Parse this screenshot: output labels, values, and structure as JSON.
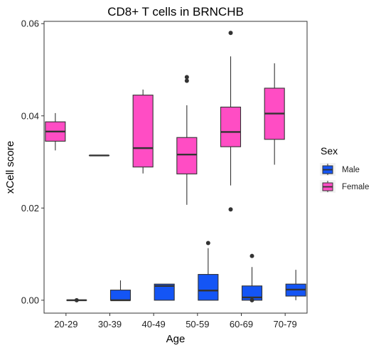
{
  "chart_data": {
    "type": "box",
    "title": "CD8+ T cells in BRNCHB",
    "xlabel": "Age",
    "ylabel": "xCell score",
    "ylim": [
      -0.0028,
      0.0605
    ],
    "yticks": [
      0.0,
      0.02,
      0.04,
      0.06
    ],
    "ytick_labels": [
      "0.00",
      "0.02",
      "0.04",
      "0.06"
    ],
    "categories": [
      "20-29",
      "30-39",
      "40-49",
      "50-59",
      "60-69",
      "70-79"
    ],
    "grid": false,
    "legend": {
      "title": "Sex",
      "position": "right"
    },
    "series": [
      {
        "name": "Male",
        "color": "#1455f5",
        "boxes": [
          {
            "category": "20-29",
            "min": 0.0,
            "q1": 0.0,
            "median": 0.0,
            "q3": 0.0,
            "max": 0.0,
            "outliers": [
              0.0
            ]
          },
          {
            "category": "30-39",
            "min": 0.0,
            "q1": 0.0,
            "median": 0.0,
            "q3": 0.0022,
            "max": 0.0043,
            "outliers": []
          },
          {
            "category": "40-49",
            "min": 0.0,
            "q1": 0.0,
            "median": 0.0031,
            "q3": 0.0035,
            "max": 0.0035,
            "outliers": []
          },
          {
            "category": "50-59",
            "min": 0.0,
            "q1": 0.0,
            "median": 0.0021,
            "q3": 0.0056,
            "max": 0.0113,
            "outliers": [
              0.0124
            ]
          },
          {
            "category": "60-69",
            "min": 0.0,
            "q1": 0.0,
            "median": 0.0006,
            "q3": 0.0031,
            "max": 0.0072,
            "outliers": [
              0.0096,
              0.0
            ]
          },
          {
            "category": "70-79",
            "min": 0.0,
            "q1": 0.0009,
            "median": 0.0023,
            "q3": 0.0035,
            "max": 0.0066,
            "outliers": []
          }
        ]
      },
      {
        "name": "Female",
        "color": "#ff4dc4",
        "boxes": [
          {
            "category": "20-29",
            "min": 0.0325,
            "q1": 0.0345,
            "median": 0.0366,
            "q3": 0.0387,
            "max": 0.0406,
            "outliers": []
          },
          {
            "category": "30-39",
            "min": 0.0314,
            "q1": 0.0314,
            "median": 0.0314,
            "q3": 0.0314,
            "max": 0.0314,
            "outliers": []
          },
          {
            "category": "40-49",
            "min": 0.0275,
            "q1": 0.0289,
            "median": 0.033,
            "q3": 0.0445,
            "max": 0.0457,
            "outliers": []
          },
          {
            "category": "50-59",
            "min": 0.0207,
            "q1": 0.0274,
            "median": 0.0316,
            "q3": 0.0353,
            "max": 0.0423,
            "outliers": [
              0.0484,
              0.0476
            ]
          },
          {
            "category": "60-69",
            "min": 0.0249,
            "q1": 0.0333,
            "median": 0.0365,
            "q3": 0.0419,
            "max": 0.0529,
            "outliers": [
              0.058,
              0.0197
            ]
          },
          {
            "category": "70-79",
            "min": 0.0294,
            "q1": 0.0349,
            "median": 0.0405,
            "q3": 0.046,
            "max": 0.0514,
            "outliers": []
          }
        ]
      }
    ]
  }
}
